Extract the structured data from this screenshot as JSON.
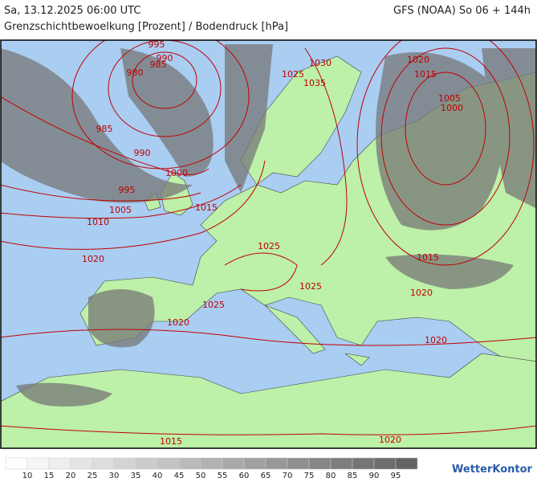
{
  "header": {
    "left": "Sa, 13.12.2025 06:00 UTC",
    "right": "GFS (NOAA) So 06 + 144h"
  },
  "subtitle": "Grenzschichtbewoelkung [Prozent] / Bodendruck [hPa]",
  "isobar_labels": [
    "995",
    "990",
    "985",
    "980",
    "985",
    "990",
    "1000",
    "995",
    "1005",
    "1010",
    "1015",
    "1020",
    "1025",
    "1025",
    "1025",
    "1020",
    "1015",
    "1020",
    "1020",
    "1020",
    "1015",
    "1030",
    "1035",
    "1025",
    "1020",
    "1015",
    "1005",
    "1000"
  ],
  "legend_labels": [
    "10",
    "15",
    "20",
    "25",
    "30",
    "35",
    "40",
    "45",
    "50",
    "55",
    "60",
    "65",
    "70",
    "75",
    "80",
    "85",
    "90",
    "95"
  ],
  "logo": "WetterKontor"
}
